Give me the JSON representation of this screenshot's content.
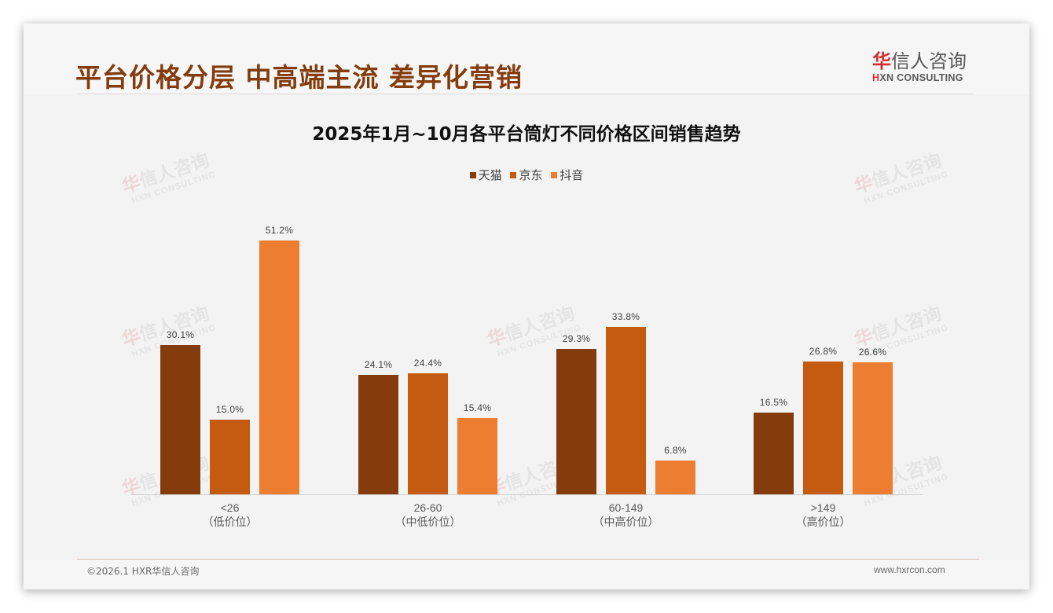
{
  "header": {
    "title": "平台价格分层 中高端主流 差异化营销",
    "logo": {
      "cn_highlight": "华",
      "cn_rest": "信人咨询",
      "en_highlight": "H",
      "en_rest": "XN CONSULTING"
    }
  },
  "watermark": {
    "cn_highlight": "华",
    "cn_rest": "信人咨询",
    "en": "HXN CONSULTING"
  },
  "colors": {
    "title": "#843c0c",
    "tmall": "#843c0c",
    "jd": "#c55a11",
    "douyin": "#ed7d31",
    "logo_red": "#d42c2c"
  },
  "chart_data": {
    "type": "bar",
    "title": "2025年1月~10月各平台筒灯不同价格区间销售趋势",
    "categories": [
      "<26",
      "26-60",
      "60-149",
      ">149"
    ],
    "category_sublabels": [
      "（低价位）",
      "（中低价位）",
      "（中高价位）",
      "（高价位）"
    ],
    "series": [
      {
        "name": "天猫",
        "color": "#843c0c",
        "values": [
          30.1,
          24.1,
          29.3,
          16.5
        ],
        "labels": [
          "30.1%",
          "24.1%",
          "29.3%",
          "16.5%"
        ]
      },
      {
        "name": "京东",
        "color": "#c55a11",
        "values": [
          15.0,
          24.4,
          33.8,
          26.8
        ],
        "labels": [
          "15.0%",
          "24.4%",
          "33.8%",
          "26.8%"
        ]
      },
      {
        "name": "抖音",
        "color": "#ed7d31",
        "values": [
          51.2,
          15.4,
          6.8,
          26.6
        ],
        "labels": [
          "51.2%",
          "15.4%",
          "6.8%",
          "26.6%"
        ]
      }
    ],
    "xlabel": "",
    "ylabel": "",
    "unit": "%",
    "ylim": [
      0,
      60
    ],
    "grid": false,
    "legend_position": "top"
  },
  "footer": {
    "copyright": "©2026.1 HXR华信人咨询",
    "website": "www.hxrcon.com"
  }
}
